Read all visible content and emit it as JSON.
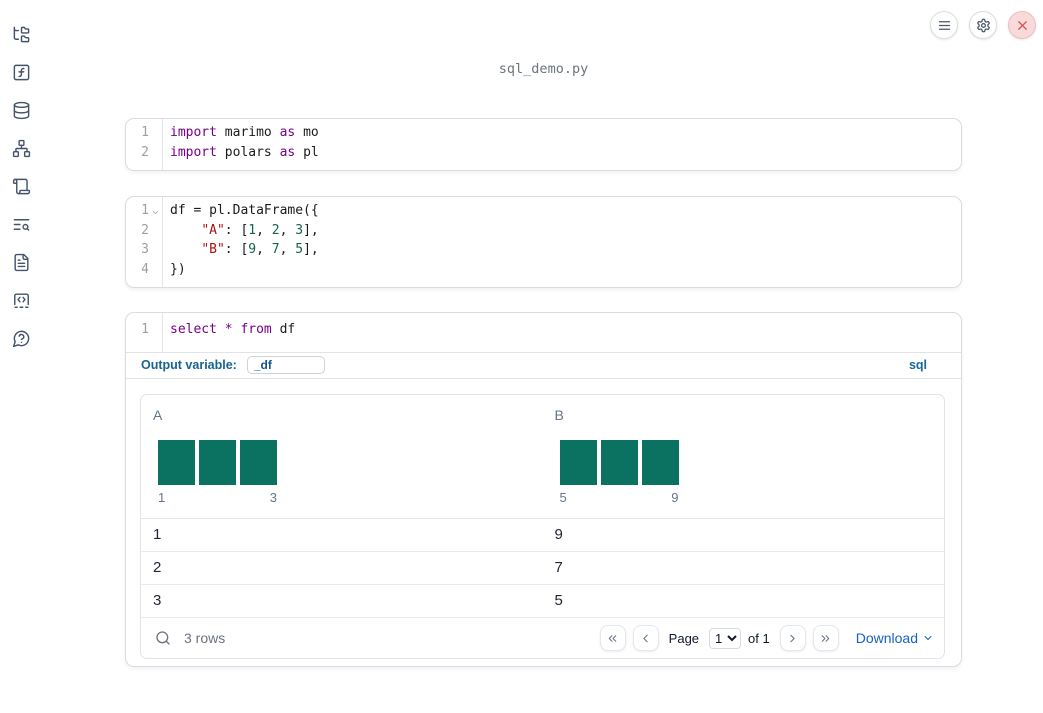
{
  "app": {
    "title": "sql_demo.py"
  },
  "colors": {
    "accent_blue": "#17648f",
    "keyword": "#770088",
    "string": "#aa1111",
    "number": "#116644",
    "histogram_bar": "#0b7261",
    "link_blue": "#1761c7"
  },
  "sidebar": {
    "items": [
      {
        "icon": "folder-tree"
      },
      {
        "icon": "square-function"
      },
      {
        "icon": "database"
      },
      {
        "icon": "network"
      },
      {
        "icon": "scroll"
      },
      {
        "icon": "text-search"
      },
      {
        "icon": "file-text"
      },
      {
        "icon": "code-pad"
      },
      {
        "icon": "chat-question"
      }
    ]
  },
  "header": {
    "buttons": [
      {
        "icon": "menu"
      },
      {
        "icon": "settings"
      },
      {
        "icon": "close"
      }
    ]
  },
  "cells": [
    {
      "id": "imports",
      "lines": [
        {
          "num": "1",
          "tokens": [
            [
              "k",
              "import"
            ],
            [
              "p",
              " marimo "
            ],
            [
              "k",
              "as"
            ],
            [
              "p",
              " mo"
            ]
          ]
        },
        {
          "num": "2",
          "tokens": [
            [
              "k",
              "import"
            ],
            [
              "p",
              " polars "
            ],
            [
              "k",
              "as"
            ],
            [
              "p",
              " pl"
            ]
          ]
        }
      ]
    },
    {
      "id": "dataframe",
      "lines": [
        {
          "num": "1",
          "fold": true,
          "tokens": [
            [
              "p",
              "df = pl.DataFrame({"
            ]
          ]
        },
        {
          "num": "2",
          "tokens": [
            [
              "p",
              "    "
            ],
            [
              "s",
              "\"A\""
            ],
            [
              "p",
              ": ["
            ],
            [
              "n",
              "1"
            ],
            [
              "p",
              ", "
            ],
            [
              "n",
              "2"
            ],
            [
              "p",
              ", "
            ],
            [
              "n",
              "3"
            ],
            [
              "p",
              "],"
            ]
          ]
        },
        {
          "num": "3",
          "tokens": [
            [
              "p",
              "    "
            ],
            [
              "s",
              "\"B\""
            ],
            [
              "p",
              ": ["
            ],
            [
              "n",
              "9"
            ],
            [
              "p",
              ", "
            ],
            [
              "n",
              "7"
            ],
            [
              "p",
              ", "
            ],
            [
              "n",
              "5"
            ],
            [
              "p",
              "],"
            ]
          ]
        },
        {
          "num": "4",
          "tokens": [
            [
              "p",
              "})"
            ]
          ]
        }
      ]
    },
    {
      "id": "sql",
      "lines": [
        {
          "num": "1",
          "tokens": [
            [
              "k",
              "select"
            ],
            [
              "p",
              " "
            ],
            [
              "k",
              "*"
            ],
            [
              "p",
              " "
            ],
            [
              "k",
              "from"
            ],
            [
              "p",
              " df"
            ]
          ]
        }
      ],
      "output_variable_label": "Output variable:",
      "output_variable_value": "_df",
      "language_badge": "sql"
    }
  ],
  "table": {
    "columns": [
      {
        "name": "A",
        "histogram": {
          "bar_values": [
            1,
            1,
            1
          ],
          "min_label": "1",
          "max_label": "3"
        }
      },
      {
        "name": "B",
        "histogram": {
          "bar_values": [
            1,
            1,
            1
          ],
          "min_label": "5",
          "max_label": "9"
        }
      }
    ],
    "rows": [
      [
        "1",
        "9"
      ],
      [
        "2",
        "7"
      ],
      [
        "3",
        "5"
      ]
    ],
    "footer": {
      "row_count": "3 rows",
      "page_label": "Page",
      "page_options": [
        "1"
      ],
      "page_value": "1",
      "of_label": "of 1",
      "download_label": "Download"
    }
  }
}
